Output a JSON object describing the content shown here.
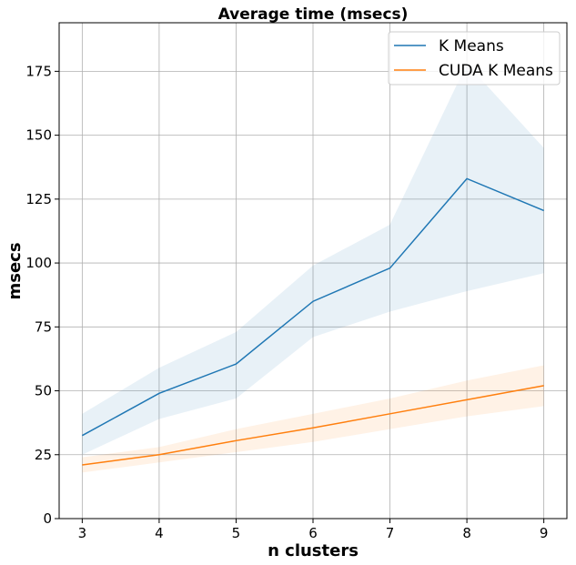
{
  "chart_data": {
    "type": "line",
    "title": "Average time (msecs)",
    "xlabel": "n clusters",
    "ylabel": "msecs",
    "x": [
      3,
      4,
      5,
      6,
      7,
      8,
      9
    ],
    "xlim": [
      2.7,
      9.3
    ],
    "ylim": [
      0,
      194
    ],
    "xticks": [
      3,
      4,
      5,
      6,
      7,
      8,
      9
    ],
    "yticks": [
      0,
      25,
      50,
      75,
      100,
      125,
      150,
      175
    ],
    "grid": true,
    "legend_position": "top-right",
    "series": [
      {
        "name": "K Means",
        "color": "#1f77b4",
        "values": [
          32.5,
          49,
          60.5,
          85,
          98,
          133,
          120.5
        ],
        "band_lower": [
          25,
          39,
          47,
          71,
          81,
          89,
          96
        ],
        "band_upper": [
          41,
          59,
          73,
          99,
          115,
          178,
          145
        ]
      },
      {
        "name": "CUDA K Means",
        "color": "#ff7f0e",
        "values": [
          21,
          25,
          30.5,
          35.5,
          41,
          46.5,
          52
        ],
        "band_lower": [
          18,
          22,
          26,
          30,
          35,
          40,
          44
        ],
        "band_upper": [
          24,
          28,
          35,
          41,
          47,
          54,
          60
        ]
      }
    ]
  }
}
